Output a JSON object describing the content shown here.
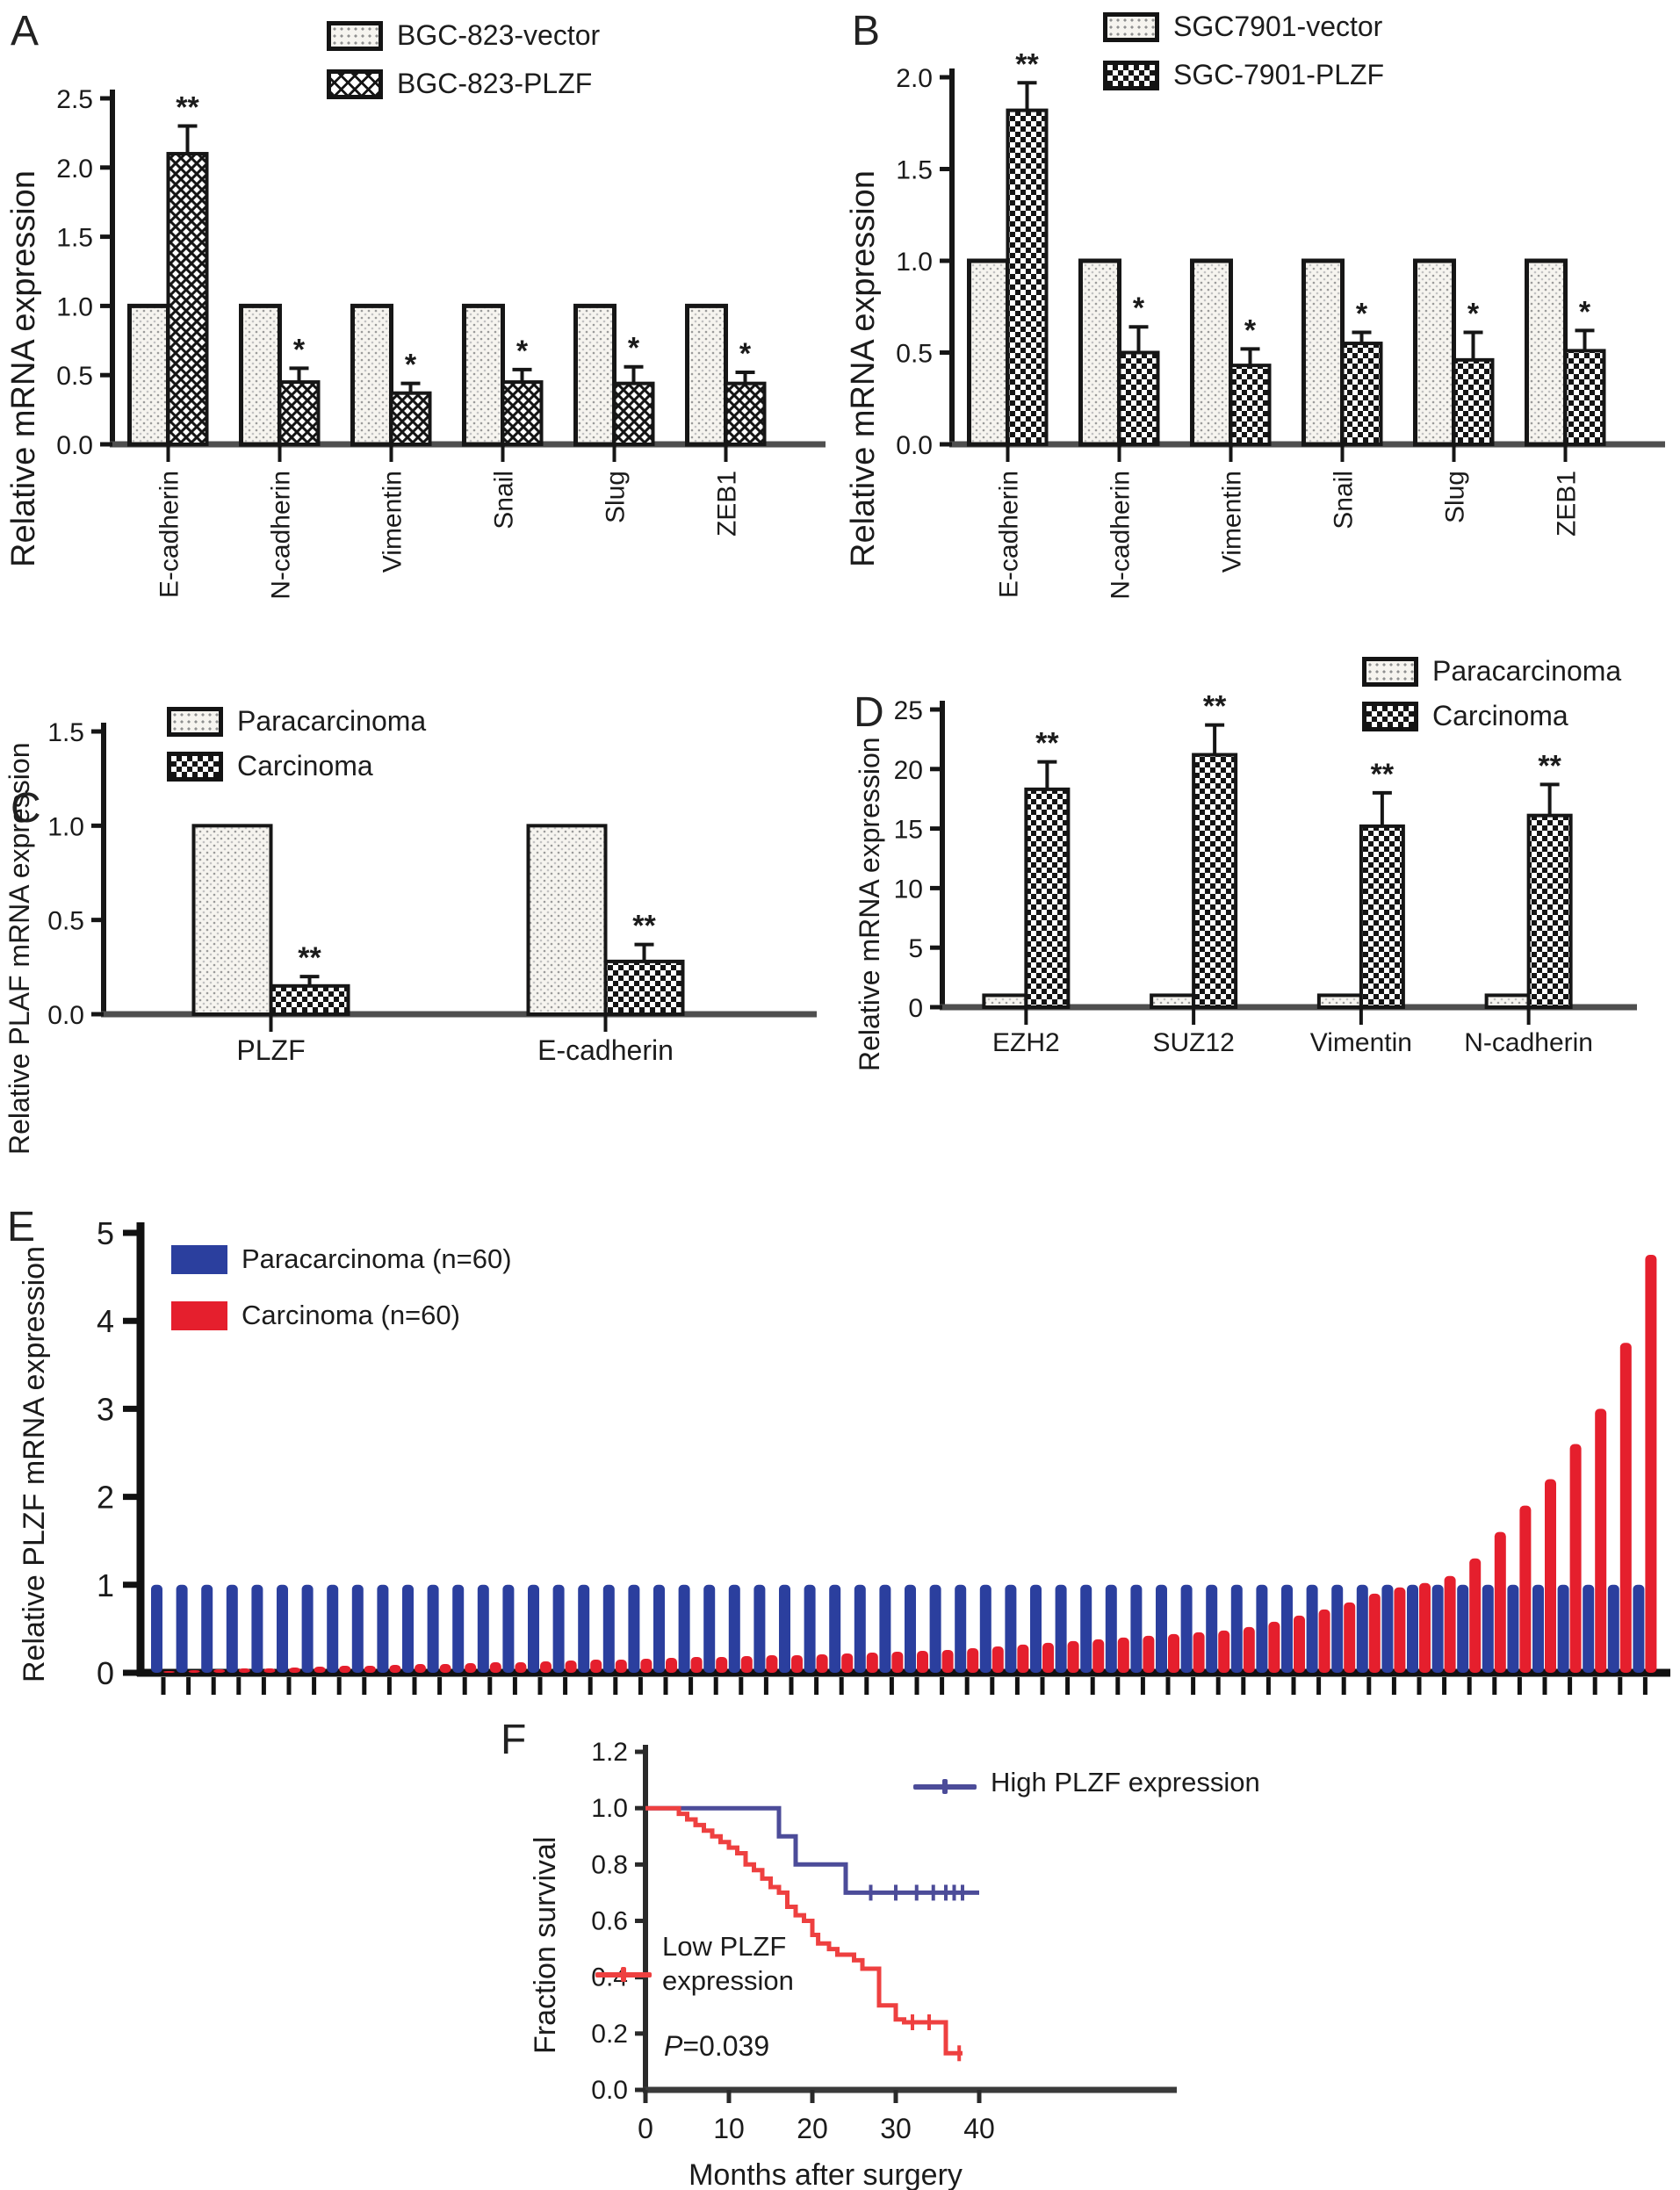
{
  "figure": {
    "panel_labels": {
      "A": "A",
      "B": "B",
      "C": "C",
      "D": "D",
      "E": "E",
      "F": "F"
    }
  },
  "chart_data": [
    {
      "panel": "A",
      "type": "bar",
      "ylabel": "Relative mRNA expression",
      "ylim": [
        0,
        2.5
      ],
      "yticks": [
        "0.0",
        "0.5",
        "1.0",
        "1.5",
        "2.0",
        "2.5"
      ],
      "categories": [
        "E-cadherin",
        "N-cadherin",
        "Vimentin",
        "Snail",
        "Slug",
        "ZEB1"
      ],
      "x_tick_rotation": 90,
      "grid": false,
      "legend_position": "top-center",
      "series": [
        {
          "name": "BGC-823-vector",
          "pattern": "dots",
          "values": [
            1.0,
            1.0,
            1.0,
            1.0,
            1.0,
            1.0
          ]
        },
        {
          "name": "BGC-823-PLZF",
          "pattern": "lattice",
          "values": [
            2.1,
            0.45,
            0.37,
            0.45,
            0.44,
            0.44
          ],
          "errors": [
            0.2,
            0.1,
            0.07,
            0.09,
            0.12,
            0.08
          ],
          "sig": [
            "**",
            "*",
            "*",
            "*",
            "*",
            "*"
          ]
        }
      ]
    },
    {
      "panel": "B",
      "type": "bar",
      "ylabel": "Relative mRNA expression",
      "ylim": [
        0,
        2.0
      ],
      "yticks": [
        "0.0",
        "0.5",
        "1.0",
        "1.5",
        "2.0"
      ],
      "categories": [
        "E-cadherin",
        "N-cadherin",
        "Vimentin",
        "Snail",
        "Slug",
        "ZEB1"
      ],
      "x_tick_rotation": 90,
      "grid": false,
      "legend_position": "top-center",
      "series": [
        {
          "name": "SGC7901-vector",
          "pattern": "dots",
          "values": [
            1.0,
            1.0,
            1.0,
            1.0,
            1.0,
            1.0
          ]
        },
        {
          "name": "SGC-7901-PLZF",
          "pattern": "checker",
          "values": [
            1.82,
            0.5,
            0.43,
            0.55,
            0.46,
            0.51
          ],
          "errors": [
            0.15,
            0.14,
            0.09,
            0.06,
            0.15,
            0.11
          ],
          "sig": [
            "**",
            "*",
            "*",
            "*",
            "*",
            "*"
          ]
        }
      ]
    },
    {
      "panel": "C",
      "type": "bar",
      "ylabel": "Relative PLAF mRNA expression",
      "ylim": [
        0,
        1.5
      ],
      "yticks": [
        "0.0",
        "0.5",
        "1.0",
        "1.5"
      ],
      "categories": [
        "PLZF",
        "E-cadherin"
      ],
      "x_tick_rotation": 0,
      "grid": false,
      "legend_position": "top-center",
      "series": [
        {
          "name": "Paracarcinoma",
          "pattern": "dots",
          "values": [
            1.0,
            1.0
          ]
        },
        {
          "name": "Carcinoma",
          "pattern": "checker",
          "values": [
            0.15,
            0.28
          ],
          "errors": [
            0.05,
            0.09
          ],
          "sig": [
            "**",
            "**"
          ]
        }
      ]
    },
    {
      "panel": "D",
      "type": "bar",
      "ylabel": "Relative mRNA expression",
      "ylim": [
        0,
        25
      ],
      "yticks": [
        "0",
        "5",
        "10",
        "15",
        "20",
        "25"
      ],
      "categories": [
        "EZH2",
        "SUZ12",
        "Vimentin",
        "N-cadherin"
      ],
      "x_tick_rotation": 0,
      "grid": false,
      "legend_position": "top-right",
      "series": [
        {
          "name": "Paracarcinoma",
          "pattern": "dots",
          "values": [
            1.0,
            1.0,
            1.0,
            1.0
          ]
        },
        {
          "name": "Carcinoma",
          "pattern": "checker",
          "values": [
            18.3,
            21.2,
            15.2,
            16.1
          ],
          "errors": [
            2.3,
            2.5,
            2.8,
            2.6
          ],
          "sig": [
            "**",
            "**",
            "**",
            "**"
          ]
        }
      ]
    },
    {
      "panel": "E",
      "type": "bar",
      "ylabel": "Relative PLZF mRNA expression",
      "ylim": [
        0,
        5
      ],
      "yticks": [
        "0",
        "1",
        "2",
        "3",
        "4",
        "5"
      ],
      "grid": false,
      "legend_position": "top-left",
      "series": [
        {
          "name": "Paracarcinoma (n=60)",
          "color": "#2b3f9e",
          "n": 60,
          "uniform_value": 1.0
        },
        {
          "name": "Carcinoma (n=60)",
          "color": "#e51f2d",
          "n": 60,
          "values": [
            0.02,
            0.03,
            0.04,
            0.05,
            0.05,
            0.06,
            0.07,
            0.08,
            0.08,
            0.09,
            0.1,
            0.1,
            0.11,
            0.12,
            0.12,
            0.13,
            0.14,
            0.15,
            0.15,
            0.16,
            0.17,
            0.18,
            0.18,
            0.19,
            0.2,
            0.2,
            0.21,
            0.22,
            0.23,
            0.24,
            0.25,
            0.26,
            0.28,
            0.3,
            0.32,
            0.34,
            0.36,
            0.38,
            0.4,
            0.42,
            0.44,
            0.46,
            0.48,
            0.52,
            0.58,
            0.65,
            0.72,
            0.8,
            0.9,
            0.97,
            1.02,
            1.1,
            1.3,
            1.6,
            1.9,
            2.2,
            2.6,
            3.0,
            3.75,
            4.75
          ]
        }
      ]
    },
    {
      "panel": "F",
      "type": "line",
      "subtype": "kaplan-meier",
      "ylabel": "Fraction survival",
      "xlabel": "Months after surgery",
      "ylim": [
        0,
        1.2
      ],
      "yticks": [
        "0.0",
        "0.2",
        "0.4",
        "0.6",
        "0.8",
        "1.0",
        "1.2"
      ],
      "xlim": [
        0,
        44
      ],
      "xticks": [
        "0",
        "10",
        "20",
        "30",
        "40"
      ],
      "grid": false,
      "p_value_italic": "P",
      "p_value_rest": "=0.039",
      "series": [
        {
          "name": "High PLZF expression",
          "color": "#4c4c99",
          "points": [
            [
              0,
              1.0
            ],
            [
              16,
              1.0
            ],
            [
              16,
              0.9
            ],
            [
              18,
              0.9
            ],
            [
              18,
              0.8
            ],
            [
              24,
              0.8
            ],
            [
              24,
              0.7
            ],
            [
              40,
              0.7
            ]
          ],
          "censors": [
            [
              27,
              0.7
            ],
            [
              30,
              0.7
            ],
            [
              32.5,
              0.7
            ],
            [
              34.5,
              0.7
            ],
            [
              36,
              0.7
            ],
            [
              37,
              0.7
            ],
            [
              38,
              0.7
            ]
          ]
        },
        {
          "name": "Low PLZF expression",
          "color": "#ee4040",
          "points": [
            [
              0,
              1.0
            ],
            [
              4,
              1.0
            ],
            [
              4,
              0.98
            ],
            [
              5,
              0.98
            ],
            [
              5,
              0.96
            ],
            [
              6,
              0.96
            ],
            [
              6,
              0.94
            ],
            [
              7,
              0.94
            ],
            [
              7,
              0.92
            ],
            [
              8,
              0.92
            ],
            [
              8,
              0.9
            ],
            [
              9,
              0.9
            ],
            [
              9,
              0.88
            ],
            [
              10,
              0.88
            ],
            [
              10,
              0.86
            ],
            [
              11,
              0.86
            ],
            [
              11,
              0.84
            ],
            [
              12,
              0.84
            ],
            [
              12,
              0.8
            ],
            [
              13,
              0.8
            ],
            [
              13,
              0.78
            ],
            [
              14,
              0.78
            ],
            [
              14,
              0.75
            ],
            [
              15,
              0.75
            ],
            [
              15,
              0.72
            ],
            [
              16,
              0.72
            ],
            [
              16,
              0.7
            ],
            [
              17,
              0.7
            ],
            [
              17,
              0.65
            ],
            [
              18,
              0.65
            ],
            [
              18,
              0.62
            ],
            [
              19,
              0.62
            ],
            [
              19,
              0.6
            ],
            [
              20,
              0.6
            ],
            [
              20,
              0.55
            ],
            [
              20.7,
              0.55
            ],
            [
              20.7,
              0.52
            ],
            [
              22,
              0.52
            ],
            [
              22,
              0.5
            ],
            [
              23,
              0.5
            ],
            [
              23,
              0.48
            ],
            [
              25,
              0.48
            ],
            [
              25,
              0.46
            ],
            [
              26,
              0.46
            ],
            [
              26,
              0.43
            ],
            [
              28,
              0.43
            ],
            [
              28,
              0.3
            ],
            [
              30,
              0.3
            ],
            [
              30,
              0.25
            ],
            [
              31,
              0.25
            ],
            [
              31,
              0.24
            ],
            [
              36,
              0.24
            ],
            [
              36,
              0.13
            ],
            [
              38,
              0.13
            ]
          ],
          "censors": [
            [
              32,
              0.24
            ],
            [
              34,
              0.24
            ],
            [
              37.6,
              0.13
            ]
          ]
        }
      ]
    }
  ]
}
